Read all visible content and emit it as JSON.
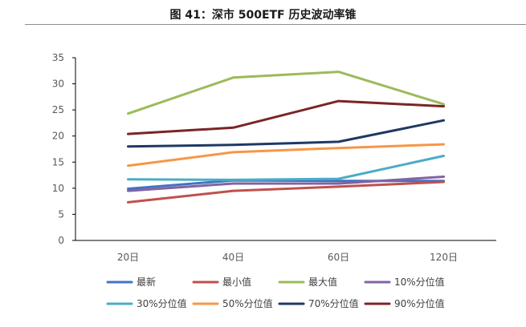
{
  "figure": {
    "title": "图 41：深市 500ETF 历史波动率锥"
  },
  "chart_data": {
    "type": "line",
    "title": "",
    "xlabel": "",
    "ylabel": "",
    "categories": [
      "20日",
      "40日",
      "60日",
      "120日"
    ],
    "ylim": [
      0,
      35
    ],
    "yticks": [
      "0",
      "5",
      "10",
      "15",
      "20",
      "25",
      "30",
      "35"
    ],
    "grid": false,
    "legend_position": "bottom",
    "series": [
      {
        "name": "最新",
        "color": "#4472c4",
        "values": [
          9.9,
          11.5,
          11.4,
          11.4
        ]
      },
      {
        "name": "最小值",
        "color": "#c0504d",
        "values": [
          7.3,
          9.5,
          10.3,
          11.2
        ]
      },
      {
        "name": "最大值",
        "color": "#9bbb59",
        "values": [
          24.3,
          31.2,
          32.3,
          26.1
        ]
      },
      {
        "name": "10%分位值",
        "color": "#8064a2",
        "values": [
          9.5,
          10.9,
          10.9,
          12.2
        ]
      },
      {
        "name": "30%分位值",
        "color": "#4bacc6",
        "values": [
          11.7,
          11.6,
          11.8,
          16.2
        ]
      },
      {
        "name": "50%分位值",
        "color": "#f79646",
        "values": [
          14.3,
          16.9,
          17.7,
          18.4
        ]
      },
      {
        "name": "70%分位值",
        "color": "#1f3864",
        "values": [
          18.0,
          18.3,
          18.9,
          23.0
        ]
      },
      {
        "name": "90%分位值",
        "color": "#7b2427",
        "values": [
          20.4,
          21.6,
          26.7,
          25.7
        ]
      }
    ]
  }
}
